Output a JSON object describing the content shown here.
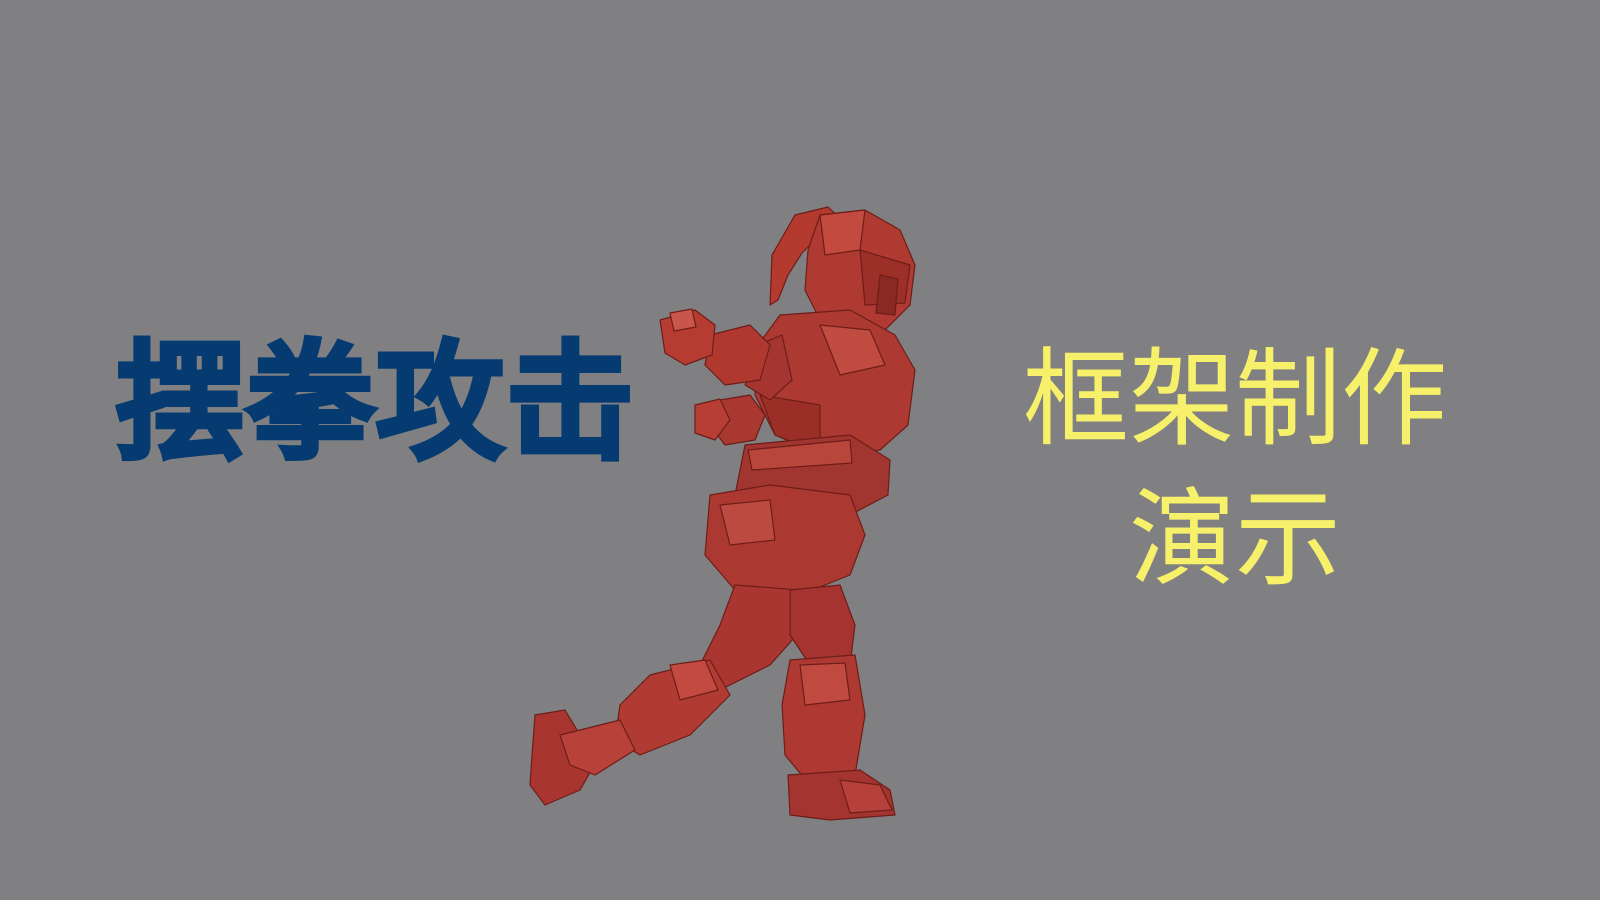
{
  "title_left": "摆拳攻击",
  "title_right": {
    "line1": "框架制作",
    "line2": "演示"
  },
  "colors": {
    "background": "#808082",
    "title_left": "#063b72",
    "title_right": "#f6f06a",
    "figure": "#b03a32"
  }
}
